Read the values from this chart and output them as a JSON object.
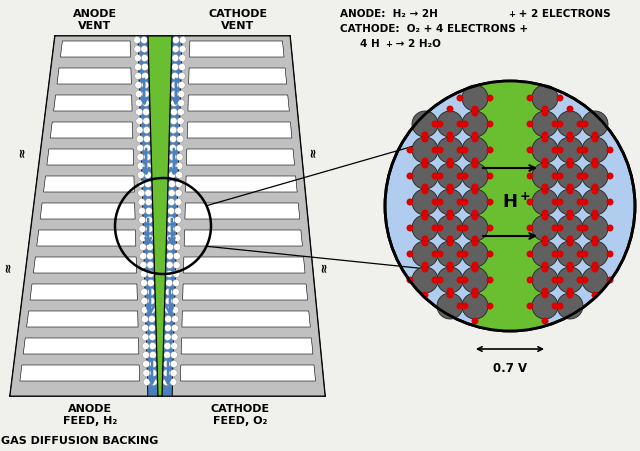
{
  "bg_color": "#f0f0ec",
  "gray_color": "#c0c0c0",
  "gray_dark": "#909090",
  "green_color": "#6abf30",
  "blue_color": "#4a7fc0",
  "white_color": "#ffffff",
  "black_color": "#000000",
  "red_color": "#dd0000",
  "particle_gray": "#606060",
  "light_blue": "#b0ccee",
  "anode_label_top": "ANODE\nVENT",
  "cathode_label_top": "CATHODE\nVENT",
  "anode_label_bot": "ANODE\nFEED, H₂",
  "cathode_label_bot": "CATHODE\nFEED, O₂",
  "gas_diffusion_label": "GAS DIFFUSION BACKING",
  "eq1a": "ANODE:  H₂ ",
  "eq1b": "→ 2H",
  "eq1c": "+ 2 ELECTRONS",
  "eq2a": "CATHODE:  O₂ + 4 ELECTRONS +",
  "eq3a": "4 H",
  "eq3b": " → 2 H₂O",
  "voltage_label": "←——0.7 V——→",
  "H_plus_label": "H"
}
